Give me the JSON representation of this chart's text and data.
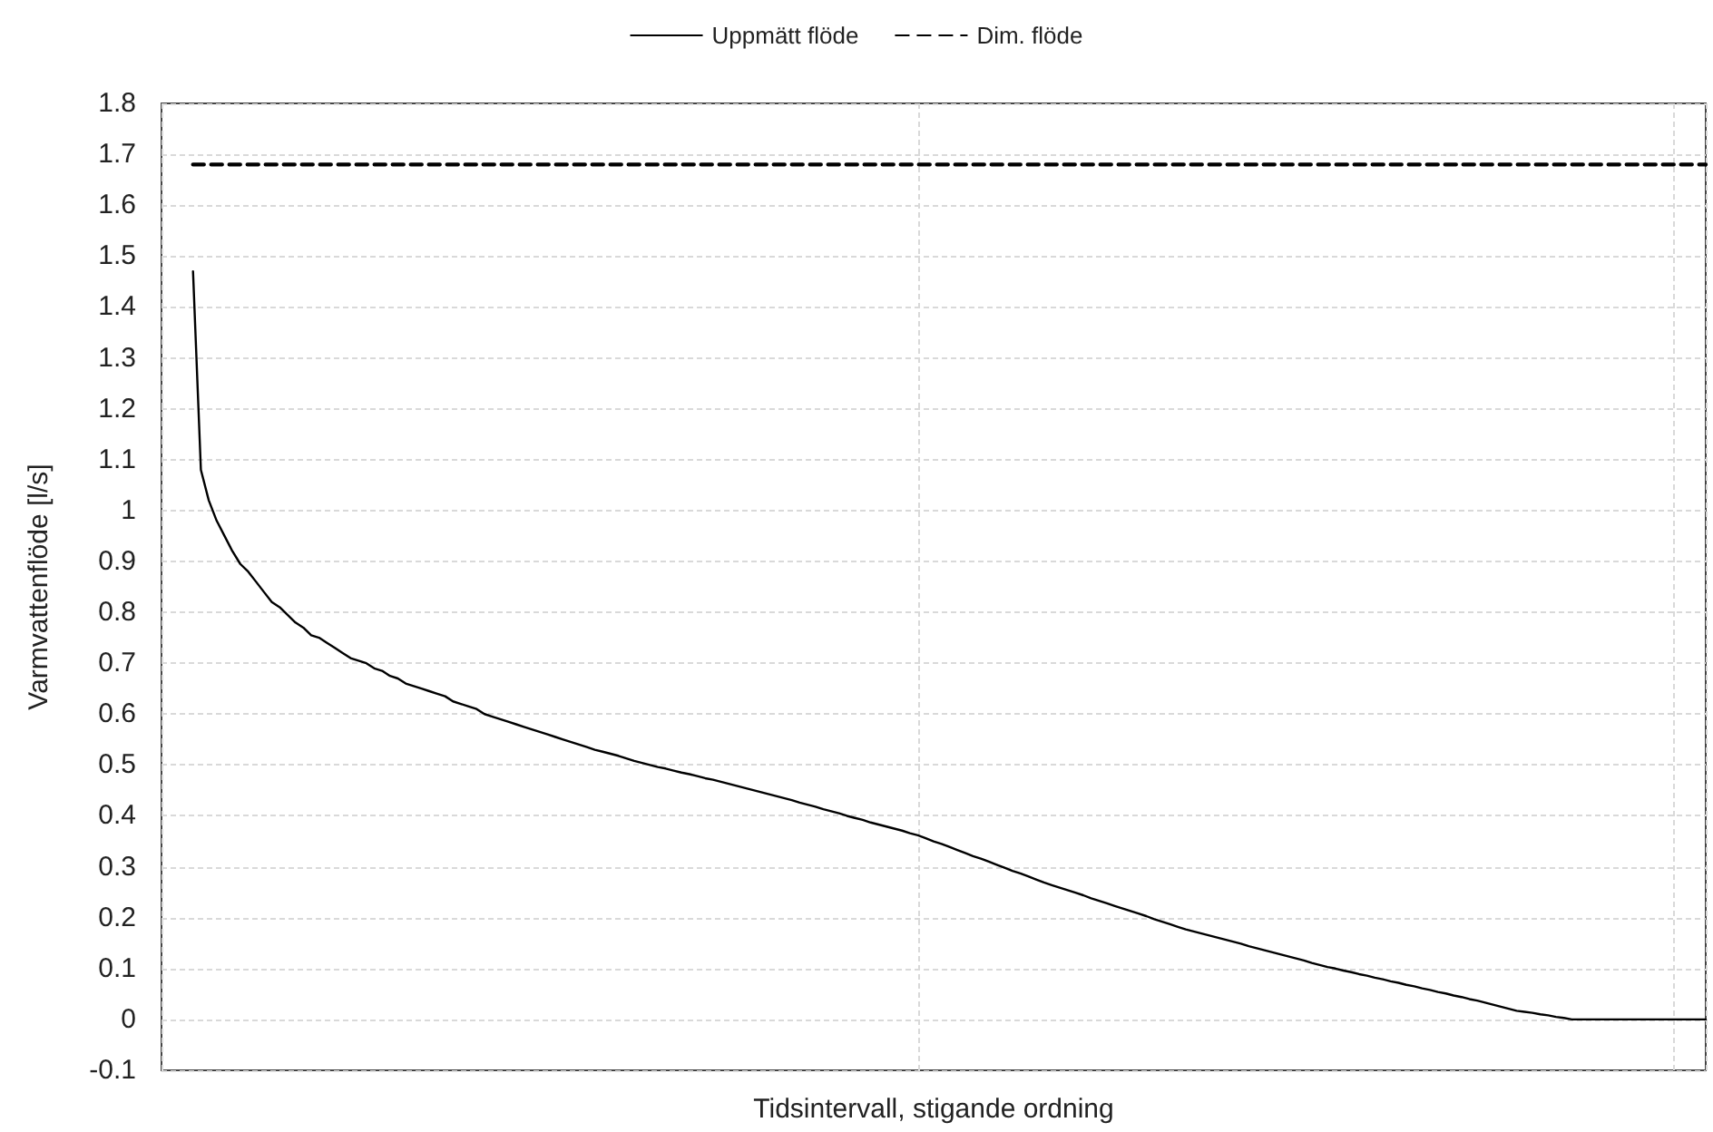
{
  "chart_data": {
    "type": "line",
    "xlabel": "Tidsintervall, stigande ordning",
    "ylabel": "Varmvattenflöde [l/s]",
    "categories": [
      null,
      null,
      null,
      null,
      null,
      null,
      null,
      null,
      null,
      null,
      null,
      null,
      null,
      null,
      null,
      null,
      null,
      null,
      null,
      null,
      null,
      null,
      null,
      null,
      null,
      null,
      null,
      null,
      null,
      null,
      null,
      null,
      null,
      null,
      null,
      null,
      null,
      null,
      null,
      null,
      null,
      null,
      null,
      null,
      null,
      null,
      null,
      null,
      null,
      null,
      null,
      null,
      null,
      null,
      null,
      null,
      null,
      null,
      null,
      null,
      null,
      null,
      null,
      null,
      null,
      null,
      null,
      null,
      null,
      null,
      null,
      null,
      null,
      null,
      null,
      null,
      null,
      null,
      null,
      null,
      null,
      null,
      null,
      null,
      null,
      null,
      null,
      null,
      null,
      null,
      null,
      null,
      null,
      null,
      null,
      null,
      null,
      null,
      null,
      null,
      null,
      null,
      null,
      null,
      null,
      null,
      null,
      null,
      null,
      null,
      null,
      null,
      null,
      null,
      null,
      null,
      null,
      null,
      null,
      null,
      null,
      null,
      null,
      null,
      null,
      null,
      null,
      null,
      null,
      null,
      null,
      null,
      null,
      null,
      null,
      null,
      null,
      null,
      null,
      null,
      null,
      null,
      null,
      null,
      null,
      null,
      null,
      null,
      null,
      null,
      null,
      null,
      null,
      null,
      null,
      null,
      null,
      null,
      null,
      null,
      null,
      null,
      null,
      null,
      null,
      null,
      null,
      null,
      null,
      null,
      null,
      null,
      null,
      null,
      null,
      null,
      null,
      null,
      null,
      null,
      null,
      null,
      null,
      null,
      null,
      null,
      null,
      null,
      null,
      null,
      null,
      null,
      null,
      null,
      null,
      null,
      null
    ],
    "ylim": [
      -0.1,
      1.8
    ],
    "yticks": [
      -0.1,
      0,
      0.1,
      0.2,
      0.3,
      0.4,
      0.5,
      0.6,
      0.7,
      0.8,
      0.9,
      1,
      1.1,
      1.2,
      1.3,
      1.4,
      1.5,
      1.6,
      1.7,
      1.8
    ],
    "tick_labels": "y",
    "grid": true,
    "legend": "top",
    "marker": "none",
    "series": [
      {
        "name": "Uppmätt flöde",
        "color": "#000000",
        "line_style": "solid",
        "values": [
          null,
          null,
          null,
          null,
          1.47,
          1.08,
          1.02,
          0.98,
          0.95,
          0.92,
          0.895,
          0.88,
          0.86,
          0.84,
          0.82,
          0.81,
          0.795,
          0.78,
          0.77,
          0.755,
          0.75,
          0.74,
          0.73,
          0.72,
          0.71,
          0.705,
          0.7,
          0.69,
          0.685,
          0.675,
          0.67,
          0.66,
          0.655,
          0.65,
          0.645,
          0.64,
          0.635,
          0.625,
          0.62,
          0.615,
          0.61,
          0.6,
          0.595,
          0.59,
          0.585,
          0.58,
          0.575,
          0.57,
          0.565,
          0.56,
          0.555,
          0.55,
          0.545,
          0.54,
          0.535,
          0.53,
          0.526,
          0.522,
          0.518,
          0.513,
          0.508,
          0.504,
          0.5,
          0.496,
          0.493,
          0.489,
          0.485,
          0.482,
          0.478,
          0.474,
          0.471,
          0.467,
          0.463,
          0.459,
          0.455,
          0.451,
          0.447,
          0.443,
          0.439,
          0.435,
          0.431,
          0.426,
          0.422,
          0.418,
          0.413,
          0.409,
          0.405,
          0.4,
          0.396,
          0.392,
          0.387,
          0.383,
          0.379,
          0.375,
          0.371,
          0.366,
          0.362,
          0.356,
          0.35,
          0.345,
          0.339,
          0.333,
          0.327,
          0.321,
          0.316,
          0.31,
          0.304,
          0.298,
          0.292,
          0.287,
          0.281,
          0.275,
          0.269,
          0.264,
          0.259,
          0.254,
          0.249,
          0.244,
          0.238,
          0.233,
          0.228,
          0.223,
          0.218,
          0.213,
          0.208,
          0.203,
          0.197,
          0.192,
          0.187,
          0.182,
          0.177,
          0.173,
          0.169,
          0.165,
          0.161,
          0.157,
          0.153,
          0.149,
          0.144,
          0.14,
          0.136,
          0.132,
          0.128,
          0.124,
          0.12,
          0.116,
          0.111,
          0.107,
          0.103,
          0.1,
          0.096,
          0.093,
          0.089,
          0.086,
          0.082,
          0.079,
          0.075,
          0.072,
          0.068,
          0.065,
          0.061,
          0.058,
          0.054,
          0.051,
          0.047,
          0.044,
          0.04,
          0.037,
          0.033,
          0.029,
          0.025,
          0.021,
          0.017,
          0.015,
          0.013,
          0.01,
          0.008,
          0.005,
          0.003,
          0,
          0,
          0,
          0,
          0,
          0,
          0,
          0,
          0,
          0,
          0,
          0,
          0,
          0,
          0,
          0,
          0,
          0
        ]
      },
      {
        "name": "Dim. flöde",
        "color": "#000000",
        "line_style": "dashed",
        "values": [
          null,
          null,
          null,
          null,
          1.68,
          1.68,
          1.68,
          1.68,
          1.68,
          1.68,
          1.68,
          1.68,
          1.68,
          1.68,
          1.68,
          1.68,
          1.68,
          1.68,
          1.68,
          1.68,
          1.68,
          1.68,
          1.68,
          1.68,
          1.68,
          1.68,
          1.68,
          1.68,
          1.68,
          1.68,
          1.68,
          1.68,
          1.68,
          1.68,
          1.68,
          1.68,
          1.68,
          1.68,
          1.68,
          1.68,
          1.68,
          1.68,
          1.68,
          1.68,
          1.68,
          1.68,
          1.68,
          1.68,
          1.68,
          1.68,
          1.68,
          1.68,
          1.68,
          1.68,
          1.68,
          1.68,
          1.68,
          1.68,
          1.68,
          1.68,
          1.68,
          1.68,
          1.68,
          1.68,
          1.68,
          1.68,
          1.68,
          1.68,
          1.68,
          1.68,
          1.68,
          1.68,
          1.68,
          1.68,
          1.68,
          1.68,
          1.68,
          1.68,
          1.68,
          1.68,
          1.68,
          1.68,
          1.68,
          1.68,
          1.68,
          1.68,
          1.68,
          1.68,
          1.68,
          1.68,
          1.68,
          1.68,
          1.68,
          1.68,
          1.68,
          1.68,
          1.68,
          1.68,
          1.68,
          1.68,
          1.68,
          1.68,
          1.68,
          1.68,
          1.68,
          1.68,
          1.68,
          1.68,
          1.68,
          1.68,
          1.68,
          1.68,
          1.68,
          1.68,
          1.68,
          1.68,
          1.68,
          1.68,
          1.68,
          1.68,
          1.68,
          1.68,
          1.68,
          1.68,
          1.68,
          1.68,
          1.68,
          1.68,
          1.68,
          1.68,
          1.68,
          1.68,
          1.68,
          1.68,
          1.68,
          1.68,
          1.68,
          1.68,
          1.68,
          1.68,
          1.68,
          1.68,
          1.68,
          1.68,
          1.68,
          1.68,
          1.68,
          1.68,
          1.68,
          1.68,
          1.68,
          1.68,
          1.68,
          1.68,
          1.68,
          1.68,
          1.68,
          1.68,
          1.68,
          1.68,
          1.68,
          1.68,
          1.68,
          1.68,
          1.68,
          1.68,
          1.68,
          1.68,
          1.68,
          1.68,
          1.68,
          1.68,
          1.68,
          1.68,
          1.68,
          1.68,
          1.68,
          1.68,
          1.68,
          1.68,
          1.68,
          1.68,
          1.68,
          1.68,
          1.68,
          1.68,
          1.68,
          1.68,
          1.68,
          1.68,
          1.68,
          1.68,
          1.68,
          1.68,
          1.68,
          1.68,
          1.68
        ]
      }
    ]
  }
}
